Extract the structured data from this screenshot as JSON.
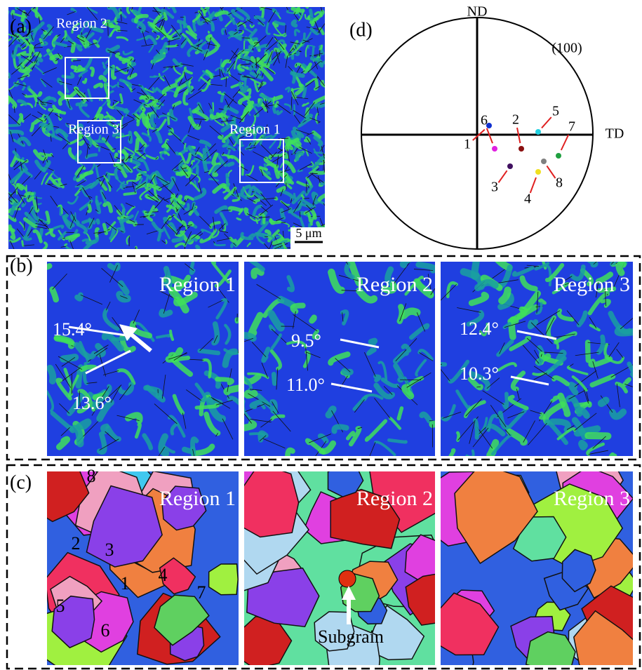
{
  "panel_a": {
    "label": "(a)",
    "regions": [
      "Region 2",
      "Region 3",
      "Region 1"
    ],
    "scale_bar": "5 μm"
  },
  "panel_b": {
    "label": "(b)",
    "images": [
      {
        "title": "Region 1",
        "angles": [
          "15.4°",
          "13.6°"
        ]
      },
      {
        "title": "Region 2",
        "angles": [
          "9.5°",
          "11.0°"
        ]
      },
      {
        "title": "Region 3",
        "angles": [
          "12.4°",
          "10.3°"
        ]
      }
    ]
  },
  "panel_c": {
    "label": "(c)",
    "images": [
      {
        "title": "Region 1",
        "grains": [
          "8",
          "2",
          "3",
          "5",
          "1",
          "4",
          "6",
          "7"
        ]
      },
      {
        "title": "Region 2",
        "annotation": "Subgrain"
      },
      {
        "title": "Region 3"
      }
    ]
  },
  "panel_d": {
    "label": "(d)",
    "axes": [
      "ND",
      "TD"
    ],
    "plane": "(100)",
    "points": [
      "1",
      "6",
      "2",
      "5",
      "7",
      "3",
      "4",
      "8"
    ]
  }
}
